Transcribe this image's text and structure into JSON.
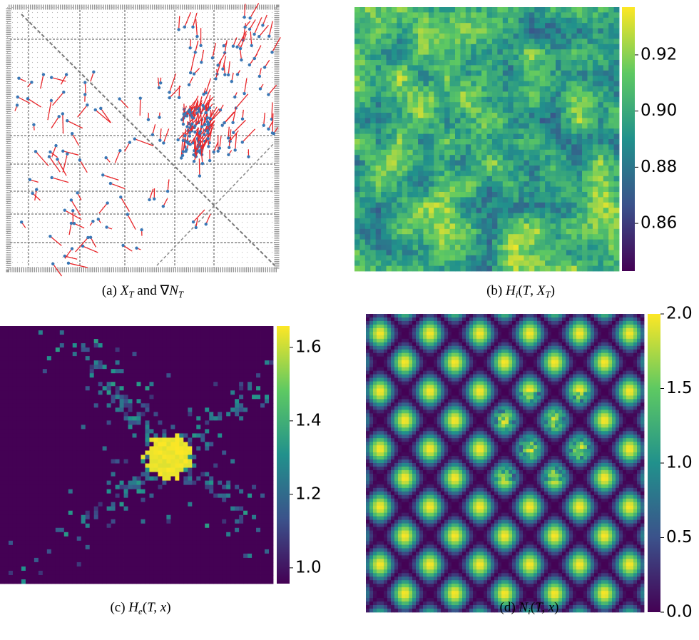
{
  "captions": [
    [
      {
        "t": "(a) ",
        "s": "n"
      },
      {
        "t": "X",
        "s": "i"
      },
      {
        "t": "T",
        "s": "sub"
      },
      {
        "t": " and ∇",
        "s": "n"
      },
      {
        "t": "N",
        "s": "i"
      },
      {
        "t": "T",
        "s": "sub"
      }
    ],
    [
      {
        "t": "(b) ",
        "s": "n"
      },
      {
        "t": "H",
        "s": "i"
      },
      {
        "t": "i",
        "s": "sub"
      },
      {
        "t": "(",
        "s": "n"
      },
      {
        "t": "T",
        "s": "i"
      },
      {
        "t": ", ",
        "s": "n"
      },
      {
        "t": "X",
        "s": "i"
      },
      {
        "t": "T",
        "s": "sub"
      },
      {
        "t": ")",
        "s": "n"
      }
    ],
    [
      {
        "t": "(c) ",
        "s": "n"
      },
      {
        "t": "H",
        "s": "i"
      },
      {
        "t": "e",
        "s": "sub"
      },
      {
        "t": "(",
        "s": "n"
      },
      {
        "t": "T, x",
        "s": "i"
      },
      {
        "t": ")",
        "s": "n"
      }
    ],
    [
      {
        "t": "(d) ",
        "s": "n"
      },
      {
        "t": "N",
        "s": "i"
      },
      {
        "t": "i",
        "s": "sub"
      },
      {
        "t": "(",
        "s": "n"
      },
      {
        "t": "T, x",
        "s": "i"
      },
      {
        "t": ")",
        "s": "n"
      }
    ]
  ],
  "chart_data": [
    {
      "type": "heatmap",
      "ylim": [
        0.843,
        0.937
      ],
      "yticks": [
        0.86,
        0.88,
        {
          "value": 0.9,
          "label": "0.90"
        },
        0.92
      ]
    },
    {
      "type": "heatmap",
      "ylim": [
        0.957,
        1.658
      ],
      "yticks": [
        {
          "value": 1.0,
          "label": "1.0"
        },
        1.2,
        1.4,
        1.6
      ]
    },
    {
      "type": "heatmap",
      "ylim": [
        0,
        2
      ],
      "yticks": [
        {
          "value": 0,
          "label": "0.0"
        },
        0.5,
        {
          "value": 1,
          "label": "1.0"
        },
        1.5,
        {
          "value": 2,
          "label": "2.0"
        }
      ]
    }
  ]
}
